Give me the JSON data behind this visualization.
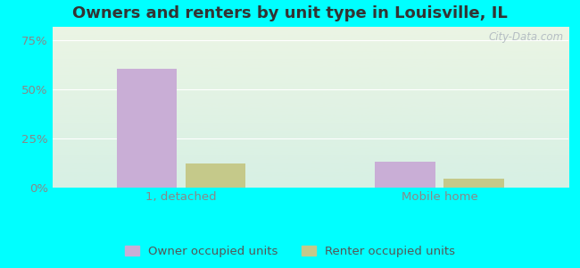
{
  "title": "Owners and renters by unit type in Louisville, IL",
  "categories": [
    "1, detached",
    "Mobile home"
  ],
  "owner_values": [
    60.5,
    13.0
  ],
  "renter_values": [
    12.5,
    4.5
  ],
  "owner_color": "#c9aed6",
  "renter_color": "#c5c98a",
  "yticks": [
    0,
    25,
    50,
    75
  ],
  "ylim": [
    0,
    82
  ],
  "background_color": "#00ffff",
  "title_fontsize": 13,
  "tick_fontsize": 9.5,
  "legend_fontsize": 9.5,
  "watermark": "City-Data.com",
  "bar_width": 0.28,
  "tick_color": "#888888",
  "label_color": "#555555"
}
